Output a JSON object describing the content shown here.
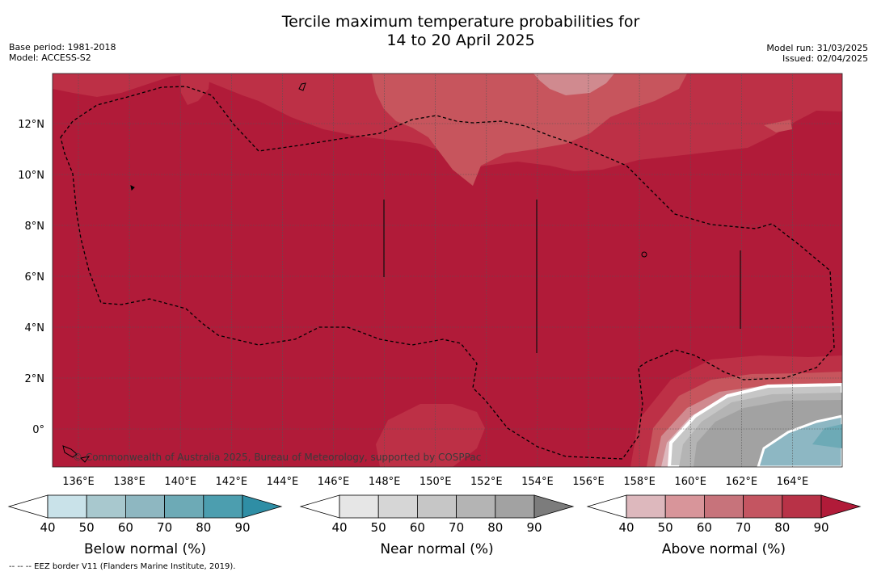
{
  "title": {
    "line1": "Tercile maximum temperature probabilities for",
    "line2": "14 to 20 April 2025"
  },
  "meta_left": {
    "base_period": "Base period: 1981-2018",
    "model": "Model: ACCESS-S2"
  },
  "meta_right": {
    "model_run": "Model run: 31/03/2025",
    "issued": "Issued: 02/04/2025"
  },
  "map": {
    "lat_labels": [
      "12°N",
      "10°N",
      "8°N",
      "6°N",
      "4°N",
      "2°N",
      "0°"
    ],
    "lon_labels": [
      "136°E",
      "138°E",
      "140°E",
      "142°E",
      "144°E",
      "146°E",
      "148°E",
      "150°E",
      "152°E",
      "154°E",
      "156°E",
      "158°E",
      "160°E",
      "162°E",
      "164°E"
    ],
    "watermark": "© Commonwealth of Australia 2025, Bureau of Meteorology, supported by COSPPac",
    "background_class": "Above normal 90%",
    "colors": {
      "above_90": "#b11b39",
      "above_80": "#bd3046",
      "above_70": "#c7555d",
      "above_60": "#d08a8f",
      "above_50": "#ddb8bd",
      "near_80": "#a2a2a2",
      "near_70": "#b4b4b4",
      "near_60": "#c6c6c6",
      "below_60": "#8db7c3"
    }
  },
  "colorbars": [
    {
      "name": "Below normal (%)",
      "ticks": [
        "40",
        "50",
        "60",
        "70",
        "80",
        "90"
      ],
      "colors": [
        "#ffffff",
        "#c9e2e9",
        "#a8c8ce",
        "#8eb7c1",
        "#6daab6",
        "#4c9eaf",
        "#2f8ea5"
      ]
    },
    {
      "name": "Near normal (%)",
      "ticks": [
        "40",
        "50",
        "60",
        "70",
        "80",
        "90"
      ],
      "colors": [
        "#ffffff",
        "#e6e6e6",
        "#d6d6d6",
        "#c6c6c6",
        "#b4b4b4",
        "#a2a2a2",
        "#7c7c7c"
      ]
    },
    {
      "name": "Above normal (%)",
      "ticks": [
        "40",
        "50",
        "60",
        "70",
        "80",
        "90"
      ],
      "colors": [
        "#ffffff",
        "#ddb8bd",
        "#d8959a",
        "#c7737b",
        "#c45561",
        "#b83247",
        "#b11b39"
      ]
    }
  ],
  "footer": "-- -- -- EEZ border V11 (Flanders Marine Institute, 2019)."
}
